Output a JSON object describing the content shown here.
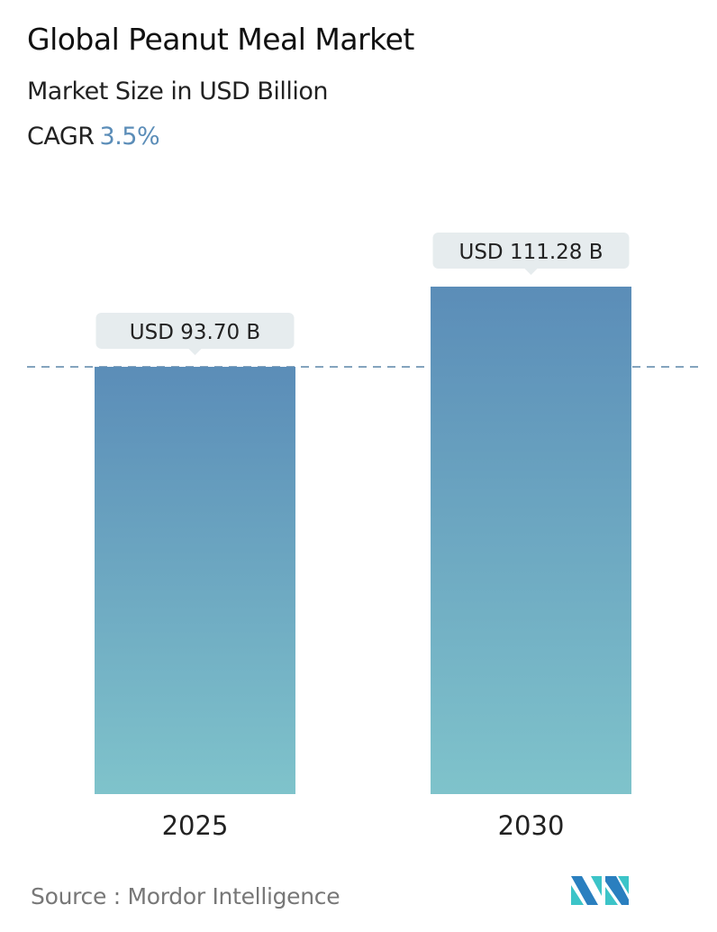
{
  "header": {
    "title": "Global Peanut Meal Market",
    "subtitle": "Market Size in USD Billion",
    "cagr_label": "CAGR",
    "cagr_value": "3.5%"
  },
  "chart_data": {
    "type": "bar",
    "categories": [
      "2025",
      "2030"
    ],
    "values": [
      93.7,
      111.28
    ],
    "data_labels": [
      "USD 93.70 B",
      "USD 111.28 B"
    ],
    "ylim": [
      0,
      111.28
    ],
    "grid": false,
    "reference_line": {
      "value": 93.7,
      "style": "dashed"
    },
    "colors": {
      "bar_top": "#5b8db8",
      "bar_bottom": "#7fc3cb",
      "label_bg": "#e6ecee",
      "dash": "#5b86a8"
    }
  },
  "footer": {
    "source": "Source :  Mordor Intelligence",
    "logo_text": "Mordor Intelligence logo"
  }
}
